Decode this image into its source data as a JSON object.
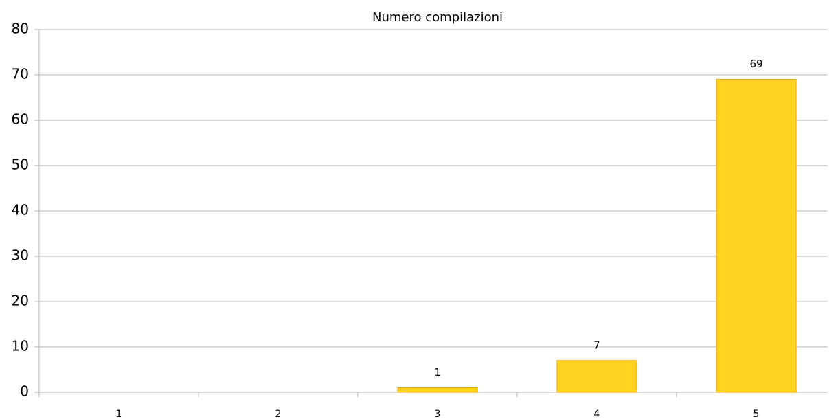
{
  "chart_data": {
    "type": "bar",
    "title": "Numero compilazioni",
    "categories": [
      "1",
      "2",
      "3",
      "4",
      "5"
    ],
    "values": [
      0,
      0,
      1,
      7,
      69
    ],
    "color": "#ffd320",
    "ylim": [
      0,
      80
    ],
    "yticks": [
      0,
      10,
      20,
      30,
      40,
      50,
      60,
      70,
      80
    ],
    "grid": true
  }
}
